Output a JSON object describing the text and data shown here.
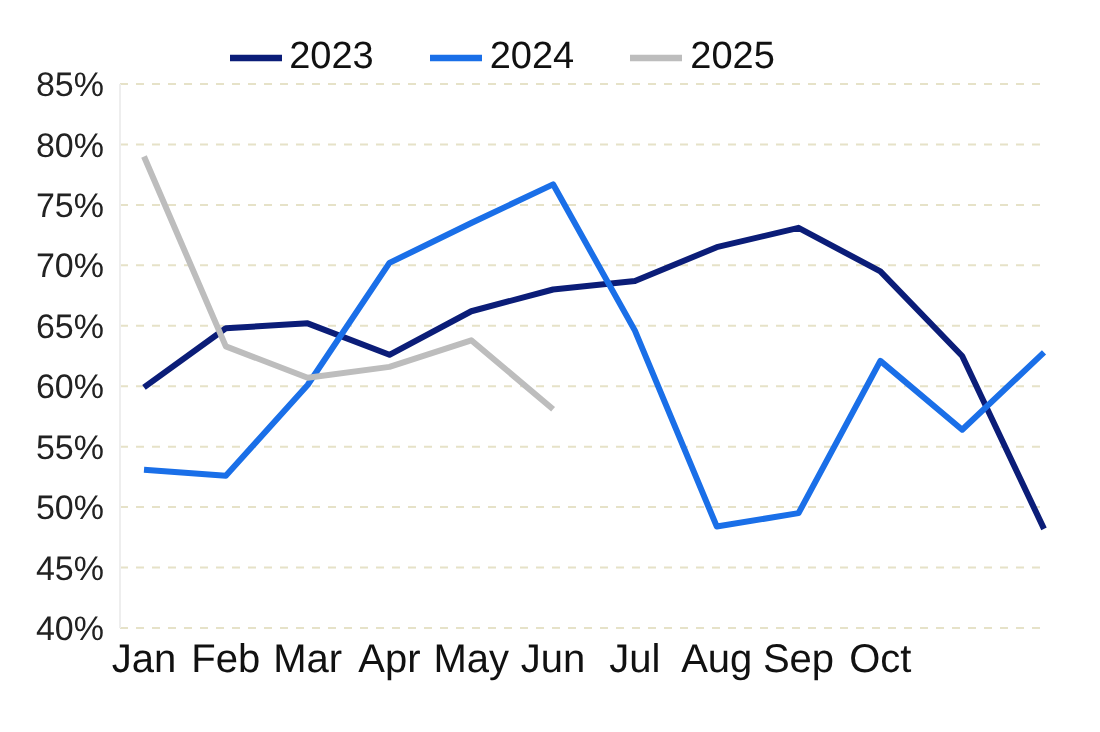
{
  "chart_data": {
    "type": "line",
    "categories": [
      "Jan",
      "Feb",
      "Mar",
      "Apr",
      "May",
      "Jun",
      "Jul",
      "Aug",
      "Sep",
      "Oct",
      null,
      null
    ],
    "series": [
      {
        "name": "2023",
        "color": "#0b1d78",
        "values": [
          59.9,
          64.8,
          65.2,
          62.6,
          66.2,
          68.0,
          68.7,
          71.5,
          73.1,
          69.5,
          62.5,
          48.2
        ]
      },
      {
        "name": "2024",
        "color": "#1a6fe8",
        "values": [
          53.1,
          52.6,
          60.1,
          70.2,
          73.5,
          76.7,
          64.6,
          48.4,
          49.5,
          62.1,
          56.4,
          62.8
        ]
      },
      {
        "name": "2025",
        "color": "#bdbdbd",
        "values": [
          79.0,
          63.3,
          60.7,
          61.6,
          63.8,
          58.1,
          null,
          null,
          null,
          null,
          null,
          null
        ]
      }
    ],
    "ylim": [
      40,
      85
    ],
    "yticks": [
      {
        "value": 40,
        "label": "40%"
      },
      {
        "value": 45,
        "label": "45%"
      },
      {
        "value": 50,
        "label": "50%"
      },
      {
        "value": 55,
        "label": "55%"
      },
      {
        "value": 60,
        "label": "60%"
      },
      {
        "value": 65,
        "label": "65%"
      },
      {
        "value": 70,
        "label": "70%"
      },
      {
        "value": 75,
        "label": "75%"
      },
      {
        "value": 80,
        "label": "80%"
      },
      {
        "value": 85,
        "label": "85%"
      }
    ],
    "grid": "y",
    "legend": "top",
    "marker": "none",
    "line_style": "solid"
  }
}
